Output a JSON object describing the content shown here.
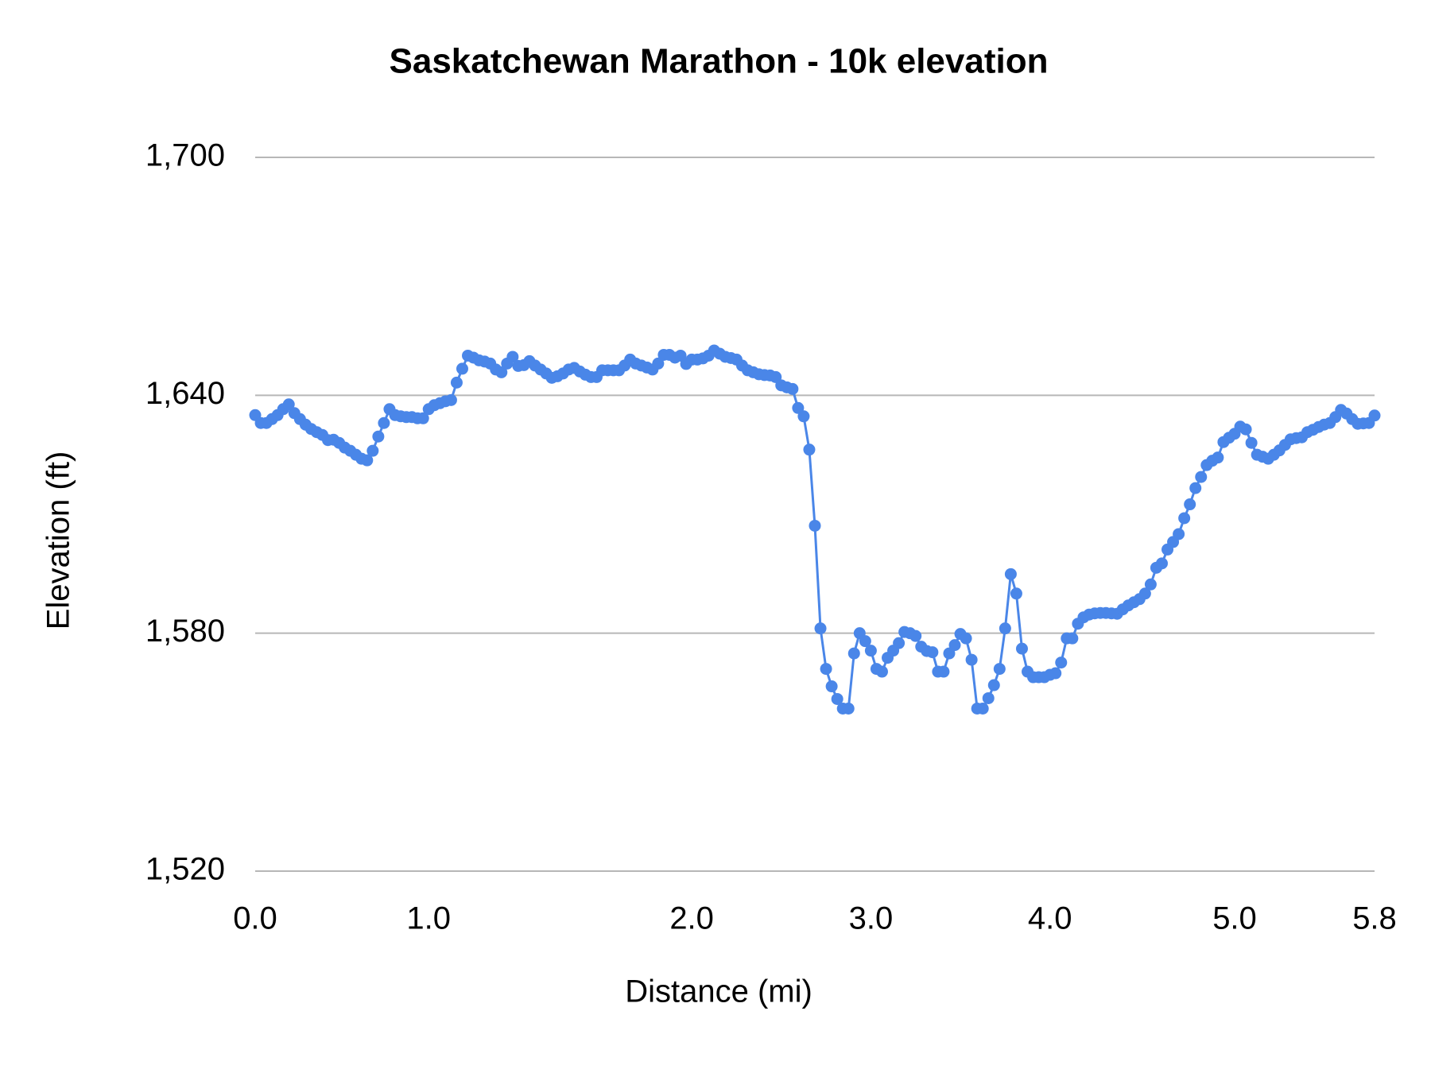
{
  "chart_data": {
    "type": "line",
    "title": "Saskatchewan Marathon - 10k elevation",
    "x_label": "Distance (mi)",
    "y_label": "Elevation (ft)",
    "categories": [
      "0.0",
      null,
      null,
      null,
      null,
      null,
      null,
      null,
      null,
      null,
      null,
      null,
      null,
      null,
      null,
      null,
      null,
      null,
      null,
      null,
      null,
      null,
      null,
      null,
      null,
      null,
      null,
      null,
      null,
      null,
      null,
      "1.0",
      null,
      null,
      null,
      null,
      null,
      null,
      null,
      null,
      null,
      null,
      null,
      null,
      null,
      null,
      null,
      null,
      null,
      null,
      null,
      null,
      null,
      null,
      null,
      null,
      null,
      null,
      null,
      null,
      null,
      null,
      null,
      null,
      null,
      null,
      null,
      null,
      null,
      null,
      null,
      null,
      null,
      null,
      null,
      null,
      null,
      null,
      "2.0",
      null,
      null,
      null,
      null,
      null,
      null,
      null,
      null,
      null,
      null,
      null,
      null,
      null,
      null,
      null,
      null,
      null,
      null,
      null,
      null,
      null,
      null,
      null,
      null,
      null,
      null,
      null,
      null,
      null,
      null,
      null,
      "3.0",
      null,
      null,
      null,
      null,
      null,
      null,
      null,
      null,
      null,
      null,
      null,
      null,
      null,
      null,
      null,
      null,
      null,
      null,
      null,
      null,
      null,
      null,
      null,
      null,
      null,
      null,
      null,
      null,
      null,
      null,
      null,
      "4.0",
      null,
      null,
      null,
      null,
      null,
      null,
      null,
      null,
      null,
      null,
      null,
      null,
      null,
      null,
      null,
      null,
      null,
      null,
      null,
      null,
      null,
      null,
      null,
      null,
      null,
      null,
      null,
      null,
      null,
      null,
      null,
      null,
      "5.0",
      null,
      null,
      null,
      null,
      null,
      null,
      null,
      null,
      null,
      null,
      null,
      null,
      null,
      null,
      null,
      null,
      null,
      null,
      null,
      null,
      null,
      null,
      null,
      null,
      "5.8"
    ],
    "series": [
      {
        "name": "Elevation",
        "color": "#4a86e8",
        "values": [
          1635,
          1633,
          1633,
          1634,
          1635,
          1636.5,
          1637.7,
          1635.5,
          1634,
          1632.6,
          1631.5,
          1630.7,
          1630,
          1628.7,
          1628.8,
          1628,
          1626.8,
          1626,
          1625,
          1624,
          1623.6,
          1626,
          1629.6,
          1633,
          1636.5,
          1635,
          1634.7,
          1634.5,
          1634.5,
          1634.2,
          1634.2,
          1636.5,
          1637.5,
          1638,
          1638.5,
          1638.8,
          1643.2,
          1646.7,
          1650,
          1649.5,
          1648.8,
          1648.5,
          1648,
          1646.5,
          1645.8,
          1648,
          1649.7,
          1647.4,
          1647.6,
          1648.6,
          1647.5,
          1646.5,
          1645.5,
          1644.4,
          1644.8,
          1645.5,
          1646.5,
          1646.9,
          1646,
          1645.2,
          1644.6,
          1644.6,
          1646.3,
          1646.3,
          1646.3,
          1646.3,
          1647.5,
          1649,
          1648,
          1647.5,
          1647,
          1646.5,
          1648,
          1650.2,
          1650.2,
          1649.5,
          1650,
          1647.9,
          1649,
          1649,
          1649.3,
          1650,
          1651.3,
          1650.5,
          1649.7,
          1649.4,
          1649,
          1647.5,
          1646.3,
          1645.8,
          1645.3,
          1645.1,
          1645,
          1644.6,
          1642.5,
          1642,
          1641.6,
          1636.8,
          1634.7,
          1626.3,
          1607.1,
          1581.2,
          1571,
          1566.6,
          1563.4,
          1561,
          1561,
          1574.9,
          1580,
          1578,
          1575.6,
          1571,
          1570.3,
          1573.8,
          1575.6,
          1577.5,
          1580.3,
          1580,
          1579.3,
          1576.6,
          1575.5,
          1575.2,
          1570.3,
          1570.3,
          1574.9,
          1577,
          1579.8,
          1578.7,
          1573.3,
          1561,
          1561,
          1563.6,
          1566.9,
          1571,
          1581.2,
          1594.9,
          1590,
          1576.1,
          1570.3,
          1568.9,
          1568.9,
          1568.9,
          1569.5,
          1569.9,
          1572.6,
          1578.7,
          1578.7,
          1582.4,
          1584,
          1584.7,
          1585,
          1585.1,
          1585.1,
          1585,
          1584.9,
          1586,
          1587,
          1587.8,
          1588.6,
          1590,
          1592.3,
          1596.5,
          1597.6,
          1601.1,
          1603,
          1605,
          1609,
          1612.5,
          1616.6,
          1619.4,
          1622.4,
          1623.5,
          1624.3,
          1628.2,
          1629.3,
          1630.3,
          1632.1,
          1631.4,
          1628,
          1625,
          1624.5,
          1624,
          1625,
          1626.1,
          1627.5,
          1628.9,
          1629.2,
          1629.4,
          1630.7,
          1631.3,
          1632,
          1632.6,
          1633,
          1634.5,
          1636.3,
          1635.4,
          1634,
          1632.8,
          1632.9,
          1633,
          1634.9
        ]
      }
    ],
    "ylim": [
      1520,
      1700
    ],
    "yticks": [
      {
        "value": 1520,
        "label": "1,520"
      },
      {
        "value": 1580,
        "label": "1,580"
      },
      {
        "value": 1640,
        "label": "1,640"
      },
      {
        "value": 1700,
        "label": "1,700"
      }
    ],
    "grid": true,
    "markers": true
  }
}
